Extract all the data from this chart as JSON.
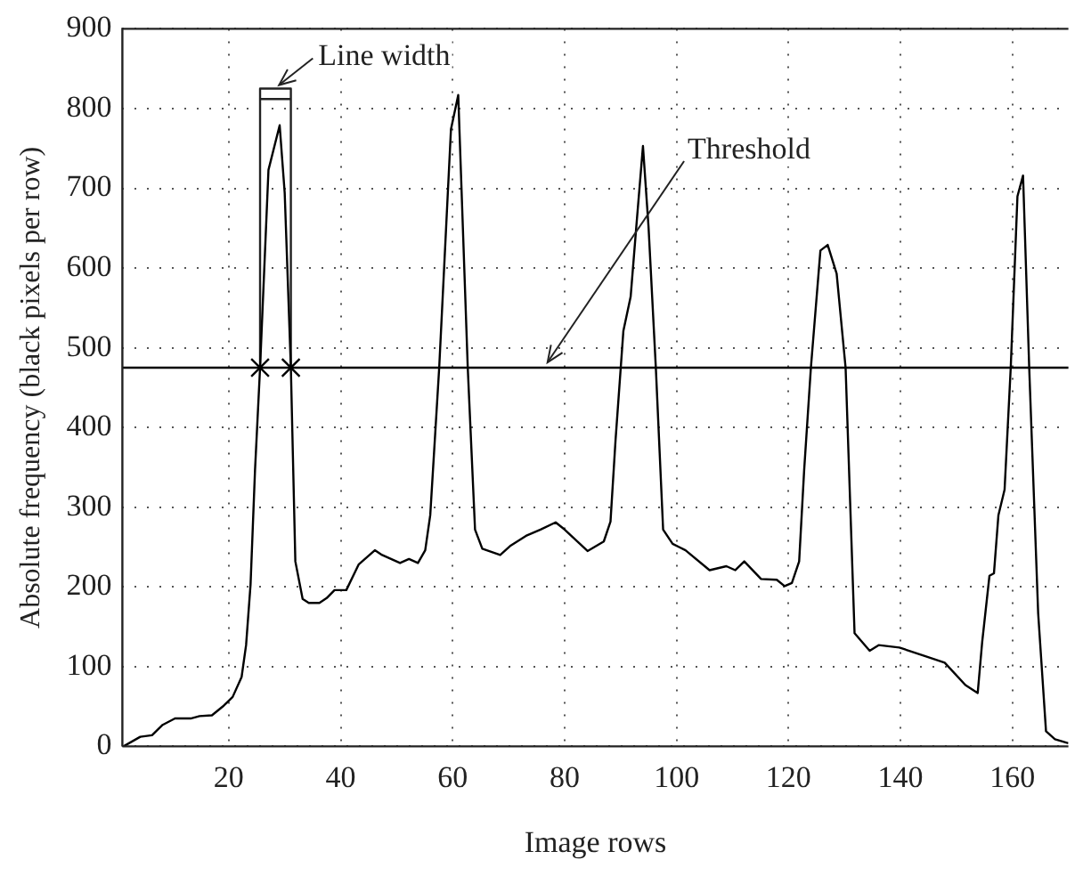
{
  "chart_data": {
    "type": "line",
    "xlabel": "Image rows",
    "ylabel": "Absolute frequency (black pixels per row)",
    "xlim": [
      1,
      170
    ],
    "xticks": [
      20,
      40,
      60,
      80,
      100,
      120,
      140,
      160
    ],
    "ylim": [
      0,
      900
    ],
    "yticks": [
      0,
      100,
      200,
      300,
      400,
      500,
      600,
      700,
      800,
      900
    ],
    "grid": true,
    "legend": false,
    "series": [
      {
        "type": "line",
        "color": "#000000",
        "marker": "none",
        "line_style": "solid",
        "x": [
          1.2,
          4.2,
          6.3,
          8.2,
          10.4,
          13.2,
          14.8,
          17,
          19.1,
          20.7,
          22.3,
          23.1,
          23.9,
          24.7,
          25.6,
          27.1,
          29.1,
          30,
          31.1,
          31.9,
          33.2,
          34.3,
          36.2,
          37.5,
          38.9,
          41,
          43.2,
          46.1,
          47.4,
          50.6,
          52.2,
          53.8,
          55.1,
          56,
          57.6,
          59.7,
          61,
          62.7,
          64,
          65.3,
          68.5,
          70.4,
          73.1,
          75.7,
          78.4,
          80,
          84.1,
          87,
          88.2,
          89.1,
          90.5,
          91.8,
          92.8,
          94,
          95,
          96.3,
          97.6,
          99.3,
          101.6,
          105.9,
          108.9,
          110.5,
          112.1,
          115.1,
          117.9,
          119.3,
          120.6,
          121.9,
          122.8,
          124,
          125.7,
          127,
          128.6,
          130.2,
          131.8,
          134.5,
          136.1,
          139.8,
          144.1,
          147.9,
          151.6,
          153.8,
          154.6,
          155.9,
          156.7,
          157.5,
          158.6,
          159.7,
          160.9,
          161.9,
          163,
          164.6,
          166,
          167.6,
          170
        ],
        "values": [
          0,
          12,
          14,
          27,
          35,
          35,
          38,
          39,
          51,
          62,
          87,
          127,
          203,
          347,
          475,
          723,
          779,
          694,
          475,
          232,
          185,
          180,
          180,
          186,
          196,
          196,
          228,
          246,
          240,
          230,
          235,
          230,
          246,
          290,
          475,
          774,
          817,
          475,
          272,
          248,
          240,
          252,
          264,
          272,
          281,
          272,
          245,
          257,
          282,
          384,
          521,
          564,
          651,
          753,
          651,
          475,
          272,
          254,
          246,
          221,
          226,
          221,
          232,
          210,
          209,
          201,
          205,
          232,
          347,
          475,
          622,
          629,
          593,
          475,
          142,
          120,
          127,
          124,
          114,
          105,
          77,
          67,
          131,
          214,
          217,
          290,
          322,
          475,
          690,
          716,
          475,
          167,
          19,
          9,
          4
        ]
      },
      {
        "type": "scatter",
        "color": "#000000",
        "marker": "cross",
        "x": [
          25.6,
          31.1
        ],
        "values": [
          475,
          475
        ]
      },
      {
        "type": "line",
        "color": "#222222",
        "marker": "none",
        "line_style": "solid",
        "x": [
          25.6,
          25.6,
          25.6,
          31.1,
          31.1,
          25.6,
          31.1,
          31.1
        ],
        "values": [
          475,
          812,
          825,
          825,
          812,
          812,
          812,
          475
        ]
      }
    ],
    "ref_lines": [
      {
        "axis": "y",
        "value": 475,
        "label": "Threshold",
        "color": "#000000",
        "line_style": "solid"
      }
    ],
    "annotations": [
      "Line width"
    ]
  }
}
